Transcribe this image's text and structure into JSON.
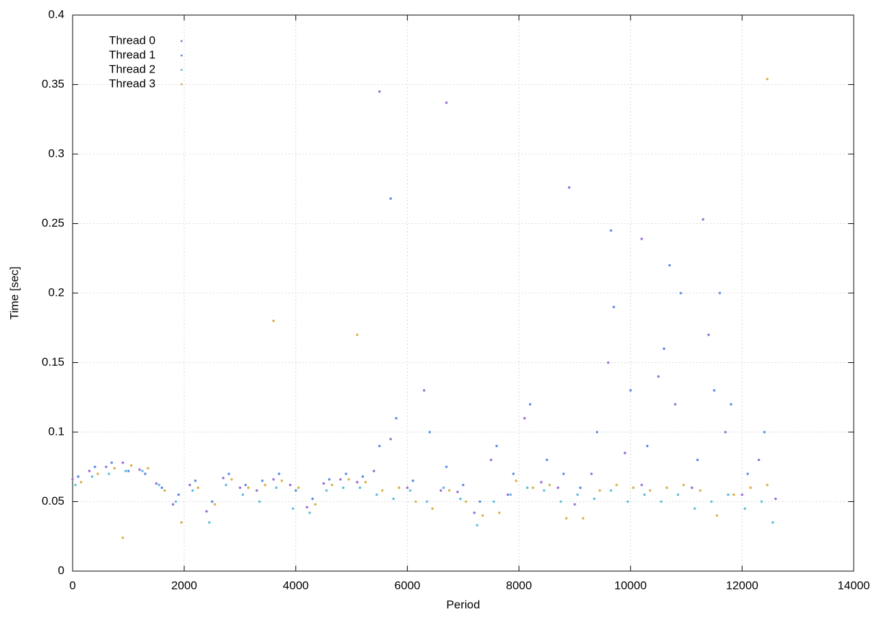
{
  "chart_data": {
    "type": "scatter",
    "x_label": "Period",
    "y_label": "Time [sec]",
    "xlim": [
      0,
      14000
    ],
    "xticks": [
      0,
      2000,
      4000,
      6000,
      8000,
      10000,
      12000,
      14000
    ],
    "ylim": [
      0,
      0.4
    ],
    "yticks": [
      0,
      0.05,
      0.1,
      0.15,
      0.2,
      0.25,
      0.3,
      0.35,
      0.4
    ],
    "grid": true,
    "legend": "upper-left",
    "series": [
      {
        "name": "Thread 0",
        "color": "#9b6fd6",
        "x": [
          0,
          300,
          600,
          900,
          1200,
          1500,
          1800,
          2100,
          2400,
          2700,
          3000,
          3300,
          3600,
          3900,
          4200,
          4500,
          4800,
          5100,
          5400,
          5700,
          6000,
          6300,
          6600,
          6900,
          7200,
          7500,
          7800,
          8100,
          8400,
          8700,
          9000,
          9300,
          9600,
          9900,
          10200,
          10500,
          10800,
          11100,
          11400,
          11700,
          12000,
          12300,
          12600,
          5500,
          6700,
          8900,
          10200,
          11300
        ],
        "values": [
          0.066,
          0.072,
          0.075,
          0.078,
          0.073,
          0.063,
          0.048,
          0.062,
          0.043,
          0.067,
          0.06,
          0.058,
          0.066,
          0.062,
          0.046,
          0.063,
          0.066,
          0.064,
          0.072,
          0.095,
          0.06,
          0.13,
          0.058,
          0.057,
          0.042,
          0.08,
          0.055,
          0.11,
          0.064,
          0.06,
          0.048,
          0.07,
          0.15,
          0.085,
          0.062,
          0.14,
          0.12,
          0.06,
          0.17,
          0.1,
          0.055,
          0.08,
          0.052,
          0.345,
          0.337,
          0.276,
          0.239,
          0.253
        ]
      },
      {
        "name": "Thread 1",
        "color": "#5a8fe6",
        "x": [
          100,
          400,
          700,
          1000,
          1300,
          1600,
          1900,
          2200,
          2500,
          2800,
          3100,
          3400,
          3700,
          4000,
          4300,
          4600,
          4900,
          5200,
          5500,
          5800,
          6100,
          6400,
          6700,
          7000,
          7300,
          7600,
          7900,
          8200,
          8500,
          8800,
          9100,
          9400,
          9700,
          10000,
          10300,
          10600,
          10900,
          11200,
          11500,
          11800,
          12100,
          12400,
          5700,
          9650,
          10700,
          11600
        ],
        "values": [
          0.068,
          0.075,
          0.078,
          0.072,
          0.07,
          0.06,
          0.055,
          0.065,
          0.05,
          0.07,
          0.062,
          0.065,
          0.07,
          0.058,
          0.052,
          0.066,
          0.07,
          0.068,
          0.09,
          0.11,
          0.065,
          0.1,
          0.075,
          0.062,
          0.05,
          0.09,
          0.07,
          0.12,
          0.08,
          0.07,
          0.06,
          0.1,
          0.19,
          0.13,
          0.09,
          0.16,
          0.2,
          0.08,
          0.13,
          0.12,
          0.07,
          0.1,
          0.268,
          0.245,
          0.22,
          0.2
        ]
      },
      {
        "name": "Thread 2",
        "color": "#5fbfdc",
        "x": [
          50,
          350,
          650,
          950,
          1250,
          1550,
          1850,
          2150,
          2450,
          2750,
          3050,
          3350,
          3650,
          3950,
          4250,
          4550,
          4850,
          5150,
          5450,
          5750,
          6050,
          6350,
          6650,
          6950,
          7250,
          7550,
          7850,
          8150,
          8450,
          8750,
          9050,
          9350,
          9650,
          9950,
          10250,
          10550,
          10850,
          11150,
          11450,
          11750,
          12050,
          12350,
          12550
        ],
        "values": [
          0.062,
          0.068,
          0.07,
          0.072,
          0.072,
          0.062,
          0.05,
          0.058,
          0.035,
          0.062,
          0.055,
          0.05,
          0.06,
          0.045,
          0.042,
          0.058,
          0.06,
          0.06,
          0.055,
          0.052,
          0.058,
          0.05,
          0.06,
          0.052,
          0.033,
          0.05,
          0.055,
          0.06,
          0.058,
          0.05,
          0.055,
          0.052,
          0.058,
          0.05,
          0.055,
          0.05,
          0.055,
          0.045,
          0.05,
          0.055,
          0.045,
          0.05,
          0.035
        ]
      },
      {
        "name": "Thread 3",
        "color": "#dab24a",
        "x": [
          150,
          450,
          750,
          1050,
          1350,
          1650,
          1950,
          2250,
          2550,
          2850,
          3150,
          3450,
          3750,
          4050,
          4350,
          4650,
          4950,
          5250,
          5550,
          5850,
          6150,
          6450,
          6750,
          7050,
          7350,
          7650,
          7950,
          8250,
          8550,
          8850,
          9150,
          9450,
          9750,
          10050,
          10350,
          10650,
          10950,
          11250,
          11550,
          11850,
          12150,
          12450,
          900,
          3600,
          5100,
          12450
        ],
        "values": [
          0.064,
          0.07,
          0.074,
          0.076,
          0.074,
          0.058,
          0.035,
          0.06,
          0.048,
          0.066,
          0.06,
          0.062,
          0.065,
          0.06,
          0.048,
          0.062,
          0.066,
          0.064,
          0.058,
          0.06,
          0.05,
          0.045,
          0.058,
          0.05,
          0.04,
          0.042,
          0.065,
          0.06,
          0.062,
          0.038,
          0.038,
          0.058,
          0.062,
          0.06,
          0.058,
          0.06,
          0.062,
          0.058,
          0.04,
          0.055,
          0.06,
          0.062,
          0.024,
          0.18,
          0.17,
          0.354
        ]
      }
    ]
  }
}
